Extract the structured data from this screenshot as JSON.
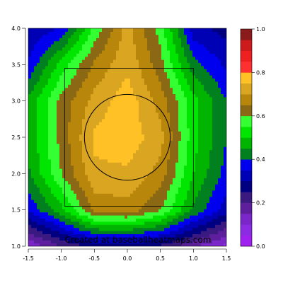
{
  "chart_data": {
    "type": "heatmap",
    "xlim": [
      -1.5,
      1.5
    ],
    "ylim": [
      1.0,
      4.0
    ],
    "x_ticks": [
      "-1.5",
      "-1.0",
      "-0.5",
      "0.0",
      "0.5",
      "1.0",
      "1.5"
    ],
    "y_ticks": [
      "1.0",
      "1.5",
      "2.0",
      "2.5",
      "3.0",
      "3.5",
      "4.0"
    ],
    "xlabel": "",
    "ylabel": "",
    "grid": false,
    "legend": "right",
    "colorbar": {
      "ticks": [
        "0.0",
        "0.2",
        "0.4",
        "0.6",
        "0.8",
        "1.0"
      ],
      "levels": [
        {
          "from": 0.0,
          "to": 0.05,
          "color": "#a020f0"
        },
        {
          "from": 0.05,
          "to": 0.1,
          "color": "#8b2be2"
        },
        {
          "from": 0.1,
          "to": 0.15,
          "color": "#7a26c9"
        },
        {
          "from": 0.15,
          "to": 0.2,
          "color": "#5e1f9e"
        },
        {
          "from": 0.2,
          "to": 0.25,
          "color": "#3a1a80"
        },
        {
          "from": 0.25,
          "to": 0.3,
          "color": "#000080"
        },
        {
          "from": 0.3,
          "to": 0.35,
          "color": "#0000b4"
        },
        {
          "from": 0.35,
          "to": 0.4,
          "color": "#0000ee"
        },
        {
          "from": 0.4,
          "to": 0.45,
          "color": "#00801e"
        },
        {
          "from": 0.45,
          "to": 0.5,
          "color": "#00b400"
        },
        {
          "from": 0.5,
          "to": 0.55,
          "color": "#00e600"
        },
        {
          "from": 0.55,
          "to": 0.6,
          "color": "#33ff33"
        },
        {
          "from": 0.6,
          "to": 0.65,
          "color": "#8b6914"
        },
        {
          "from": 0.65,
          "to": 0.7,
          "color": "#b8860b"
        },
        {
          "from": 0.7,
          "to": 0.75,
          "color": "#daa520"
        },
        {
          "from": 0.75,
          "to": 0.8,
          "color": "#ffc125"
        },
        {
          "from": 0.8,
          "to": 0.85,
          "color": "#ff3030"
        },
        {
          "from": 0.85,
          "to": 0.9,
          "color": "#ee2020"
        },
        {
          "from": 0.9,
          "to": 0.95,
          "color": "#cd1a1a"
        },
        {
          "from": 0.95,
          "to": 1.0,
          "color": "#8b1a1a"
        }
      ]
    },
    "x": [
      -1.5,
      -1.0,
      -0.5,
      0.0,
      0.5,
      1.0,
      1.5
    ],
    "y": [
      1.0,
      1.5,
      2.0,
      2.5,
      3.0,
      3.5,
      4.0
    ],
    "z": [
      [
        0.1,
        0.2,
        0.26,
        0.26,
        0.24,
        0.16,
        0.08
      ],
      [
        0.36,
        0.48,
        0.66,
        0.68,
        0.6,
        0.44,
        0.32
      ],
      [
        0.44,
        0.6,
        0.74,
        0.74,
        0.68,
        0.5,
        0.38
      ],
      [
        0.46,
        0.62,
        0.76,
        0.78,
        0.72,
        0.52,
        0.4
      ],
      [
        0.46,
        0.62,
        0.72,
        0.78,
        0.68,
        0.52,
        0.4
      ],
      [
        0.36,
        0.52,
        0.66,
        0.74,
        0.62,
        0.42,
        0.34
      ],
      [
        0.3,
        0.36,
        0.56,
        0.72,
        0.58,
        0.32,
        0.28
      ]
    ],
    "strike_zone": {
      "x": [
        -0.95,
        1.0
      ],
      "y": [
        1.55,
        3.45
      ]
    },
    "circle": {
      "center": [
        0.0,
        2.5
      ],
      "radius": 0.65
    },
    "watermark": "Created at baseballheatmaps.com"
  }
}
